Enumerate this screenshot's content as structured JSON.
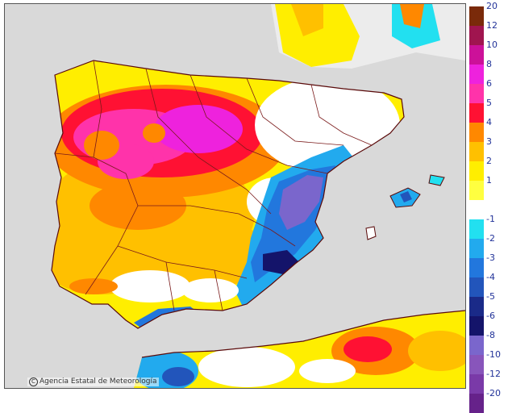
{
  "credit": "Agencia Estatal de Meteorología",
  "legend": {
    "warm": [
      {
        "label": "20",
        "color": "#7a2a0a"
      },
      {
        "label": "12",
        "color": "#a0154f"
      },
      {
        "label": "10",
        "color": "#cc1199"
      },
      {
        "label": "8",
        "color": "#ee22dd"
      },
      {
        "label": "6",
        "color": "#ff33aa"
      },
      {
        "label": "5",
        "color": "#ff1133"
      },
      {
        "label": "4",
        "color": "#ff8800"
      },
      {
        "label": "3",
        "color": "#ffc000"
      },
      {
        "label": "2",
        "color": "#ffee00"
      },
      {
        "label": "1",
        "color": "#ffff40"
      }
    ],
    "neutral_color": "#ffffff",
    "cold": [
      {
        "label": "-1",
        "color": "#22e0f0"
      },
      {
        "label": "-2",
        "color": "#22aaee"
      },
      {
        "label": "-3",
        "color": "#2277dd"
      },
      {
        "label": "-4",
        "color": "#2255bb"
      },
      {
        "label": "-5",
        "color": "#1a2a88"
      },
      {
        "label": "-6",
        "color": "#14146a"
      },
      {
        "label": "-8",
        "color": "#7a66cc"
      },
      {
        "label": "-10",
        "color": "#8855bb"
      },
      {
        "label": "-12",
        "color": "#7a3aa8"
      },
      {
        "label": "-20",
        "color": "#66228a"
      }
    ]
  },
  "colors": {
    "sea": "#d9d9d9",
    "land_outside": "#ececec",
    "border": "#7a1a1a",
    "coast": "#5a0a0a"
  }
}
